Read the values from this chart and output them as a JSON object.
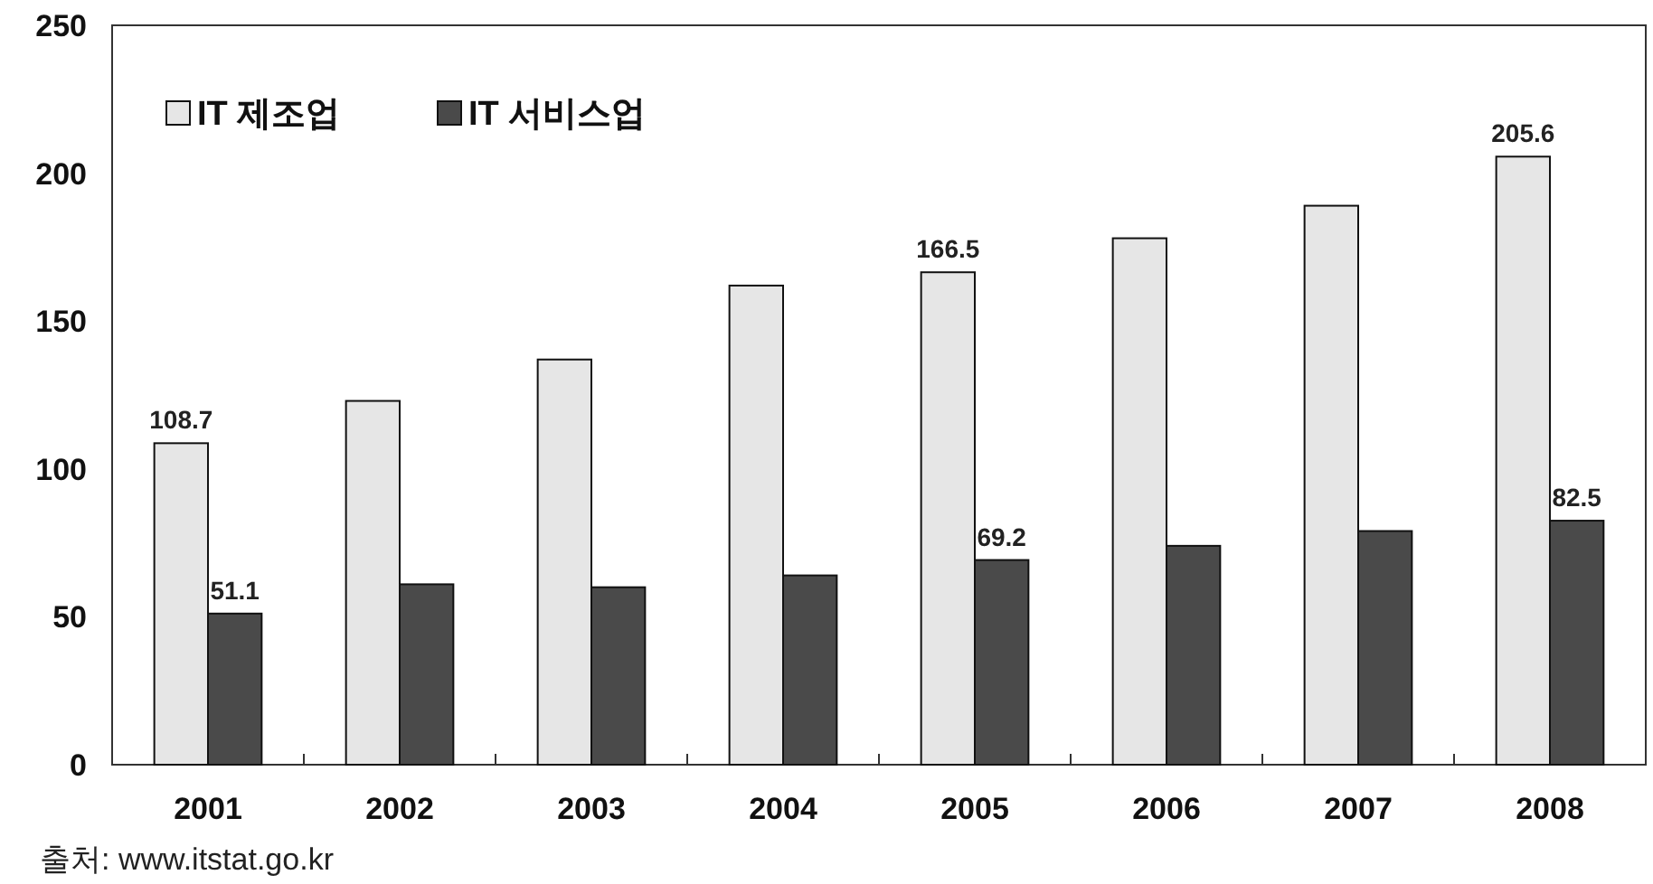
{
  "chart_data": {
    "type": "bar",
    "categories": [
      "2001",
      "2002",
      "2003",
      "2004",
      "2005",
      "2006",
      "2007",
      "2008"
    ],
    "series": [
      {
        "name": "IT 제조업",
        "color": "#e6e6e6",
        "values": [
          108.7,
          123,
          137,
          162,
          166.5,
          178,
          189,
          205.6
        ],
        "value_labels": [
          "108.7",
          null,
          null,
          null,
          "166.5",
          null,
          null,
          "205.6"
        ]
      },
      {
        "name": "IT 서비스업",
        "color": "#4a4a4a",
        "values": [
          51.1,
          61,
          60,
          64,
          69.2,
          74,
          79,
          82.5
        ],
        "value_labels": [
          "51.1",
          null,
          null,
          null,
          "69.2",
          null,
          null,
          "82.5"
        ]
      }
    ],
    "ylim": [
      0,
      250
    ],
    "yticks": [
      0,
      50,
      100,
      150,
      200,
      250
    ],
    "grid": false,
    "legend": "top left",
    "annotations": [
      "출처: www.itstat.go.kr"
    ]
  }
}
